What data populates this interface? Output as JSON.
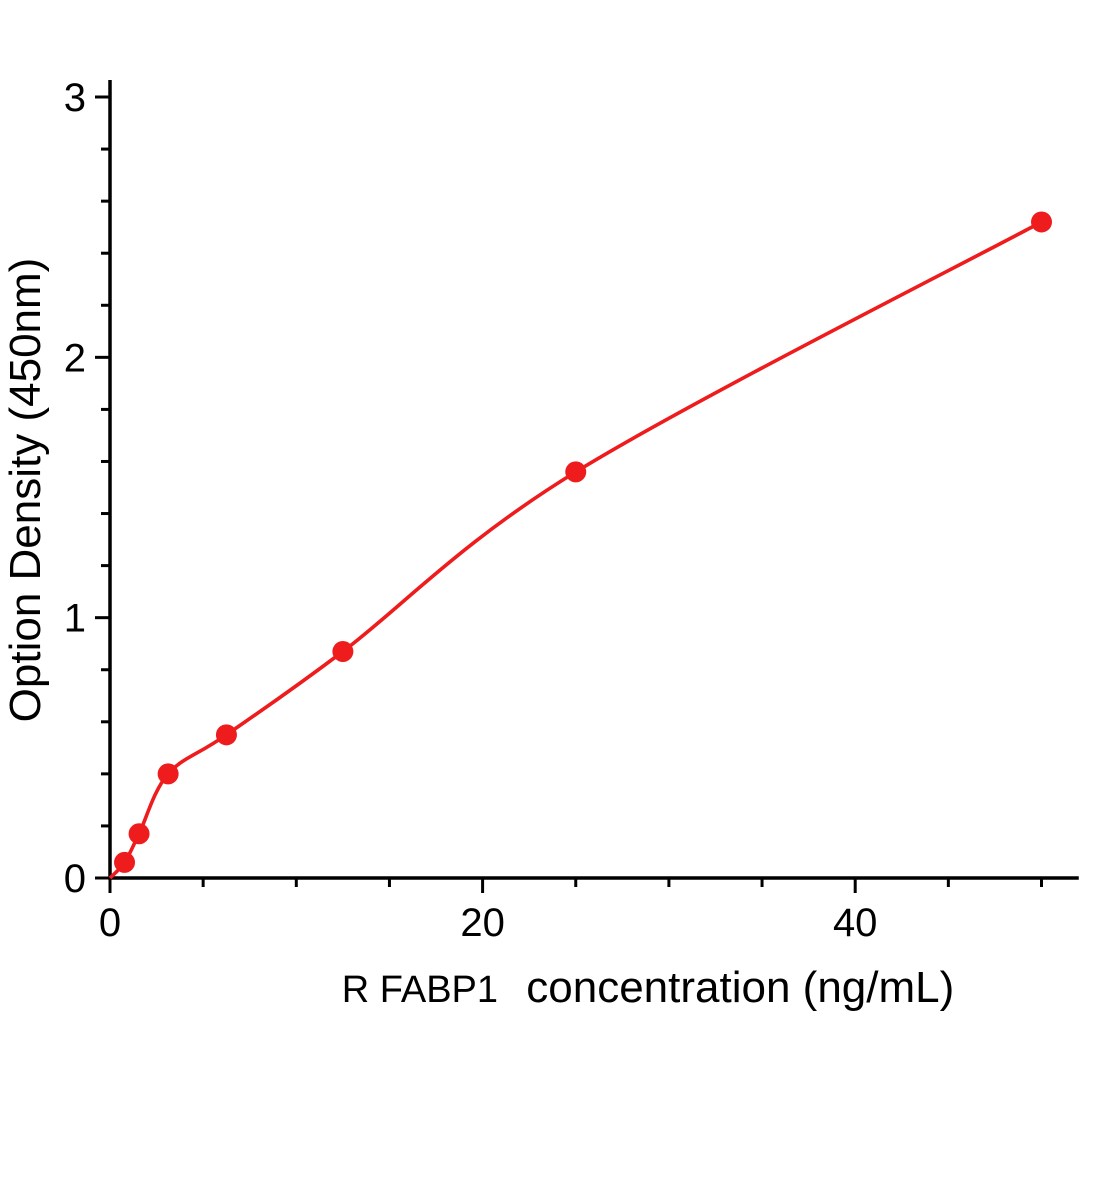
{
  "chart_data": {
    "type": "scatter",
    "title": "",
    "xlabel_prefix": "R FABP1",
    "xlabel": "concentration (ng/mL)",
    "ylabel": "Option Density  (450nm)",
    "xlim": [
      0,
      52
    ],
    "ylim": [
      0,
      3
    ],
    "x_major_ticks": [
      0,
      20,
      40
    ],
    "x_minor_step": 5,
    "y_major_ticks": [
      0,
      1,
      2,
      3
    ],
    "y_minor_step": 0.2,
    "grid": false,
    "legend": "none",
    "marker_color": "#ee1c1c",
    "line_color": "#ee1c1c",
    "axis_color": "#000000",
    "curve_start": {
      "x": 0,
      "y": 0
    },
    "points": [
      {
        "x": 0.78,
        "y": 0.06
      },
      {
        "x": 1.56,
        "y": 0.17
      },
      {
        "x": 3.12,
        "y": 0.4
      },
      {
        "x": 6.25,
        "y": 0.55
      },
      {
        "x": 12.5,
        "y": 0.87
      },
      {
        "x": 25,
        "y": 1.56
      },
      {
        "x": 50,
        "y": 2.52
      }
    ]
  }
}
